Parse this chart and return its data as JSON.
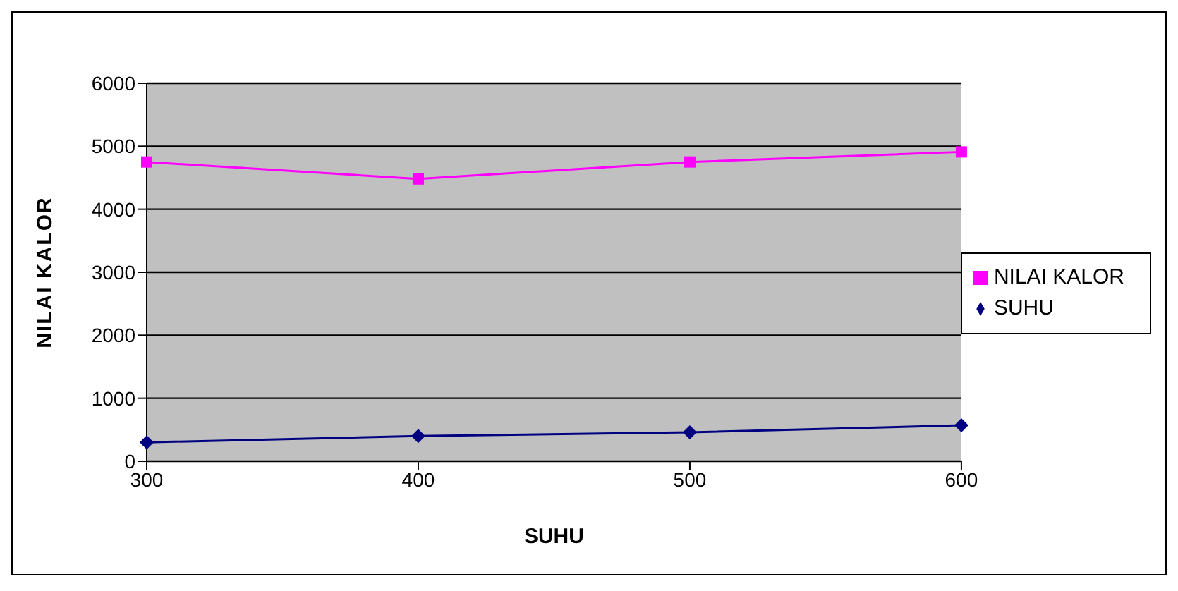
{
  "chart_data": {
    "type": "line",
    "xlabel": "SUHU",
    "ylabel": "NILAI KALOR",
    "categories": [
      "300",
      "400",
      "500",
      "600"
    ],
    "series": [
      {
        "name": "SUHU",
        "color": "#000080",
        "marker": "diamond",
        "values": [
          300,
          400,
          460,
          570
        ]
      },
      {
        "name": "NILAI KALOR",
        "color": "#ff00ff",
        "marker": "square",
        "values": [
          4750,
          4480,
          4750,
          4910
        ]
      }
    ],
    "ylim": [
      0,
      6000
    ],
    "yticks": [
      0,
      1000,
      2000,
      3000,
      4000,
      5000,
      6000
    ],
    "grid": "y",
    "legend": "right"
  }
}
